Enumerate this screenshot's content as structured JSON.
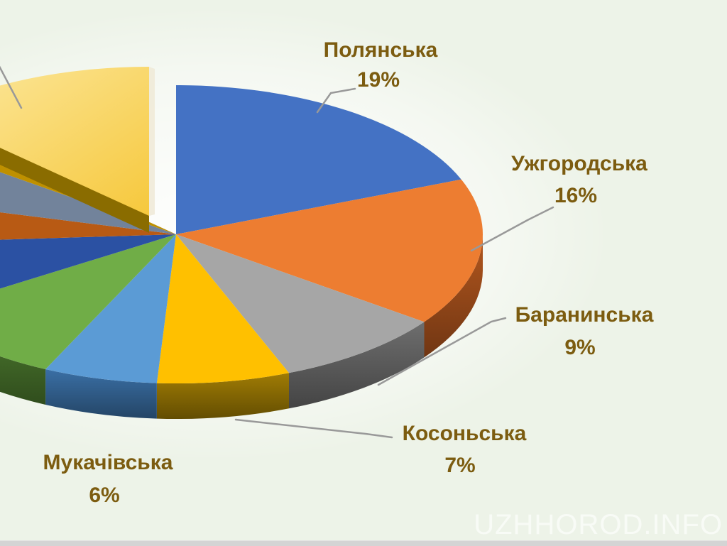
{
  "watermark": "UZHHOROD.INFO",
  "background_color": "#EDF3E8",
  "label_color": "#7C5C10",
  "leader_line_color": "#999999",
  "chart_data": {
    "type": "pie",
    "style": "3d-exploded-pie",
    "title": "",
    "unit": "%",
    "legend": "none",
    "slices": [
      {
        "label": "Полянська",
        "value": 19,
        "display": "19%",
        "color": "#4472C4",
        "side": "#2F549B",
        "exploded": false
      },
      {
        "label": "Ужгородська",
        "value": 16,
        "display": "16%",
        "color": "#ED7D31",
        "side": "#B4571E",
        "exploded": false
      },
      {
        "label": "Баранинська",
        "value": 9,
        "display": "9%",
        "color": "#A6A6A6",
        "side": "#6E6E6E",
        "exploded": false
      },
      {
        "label": "Косоньська",
        "value": 7,
        "display": "7%",
        "color": "#FFC000",
        "side": "#A07C04",
        "exploded": false
      },
      {
        "label": "Мукачівська",
        "value": 6,
        "display": "6%",
        "color": "#5B9BD5",
        "side": "#3A6FA5",
        "exploded": false
      },
      {
        "label": "",
        "value": 9,
        "display": "",
        "color": "#70AD47",
        "side": "#4E7C2F",
        "exploded": false
      },
      {
        "label": "",
        "value": 8,
        "display": "",
        "color": "#2B51A3",
        "side": "#1E3C7A",
        "exploded": false
      },
      {
        "label": "",
        "value": 5,
        "display": "",
        "color": "#B85A14",
        "side": "#8A420E",
        "exploded": false
      },
      {
        "label": "",
        "value": 6,
        "display": "",
        "color": "#72839B",
        "side": "#55657B",
        "exploded": false
      },
      {
        "label": "",
        "value": 2,
        "display": "",
        "color": "#BF9000",
        "side": "#8F6C00",
        "exploded": false
      },
      {
        "label": "",
        "value": 13,
        "display": "",
        "color": "#F9D35E",
        "side": "#8A6C00",
        "exploded": true
      }
    ],
    "labels_shown_for": [
      "Полянська",
      "Ужгородська",
      "Баранинська",
      "Косоньська",
      "Мукачівська"
    ]
  }
}
